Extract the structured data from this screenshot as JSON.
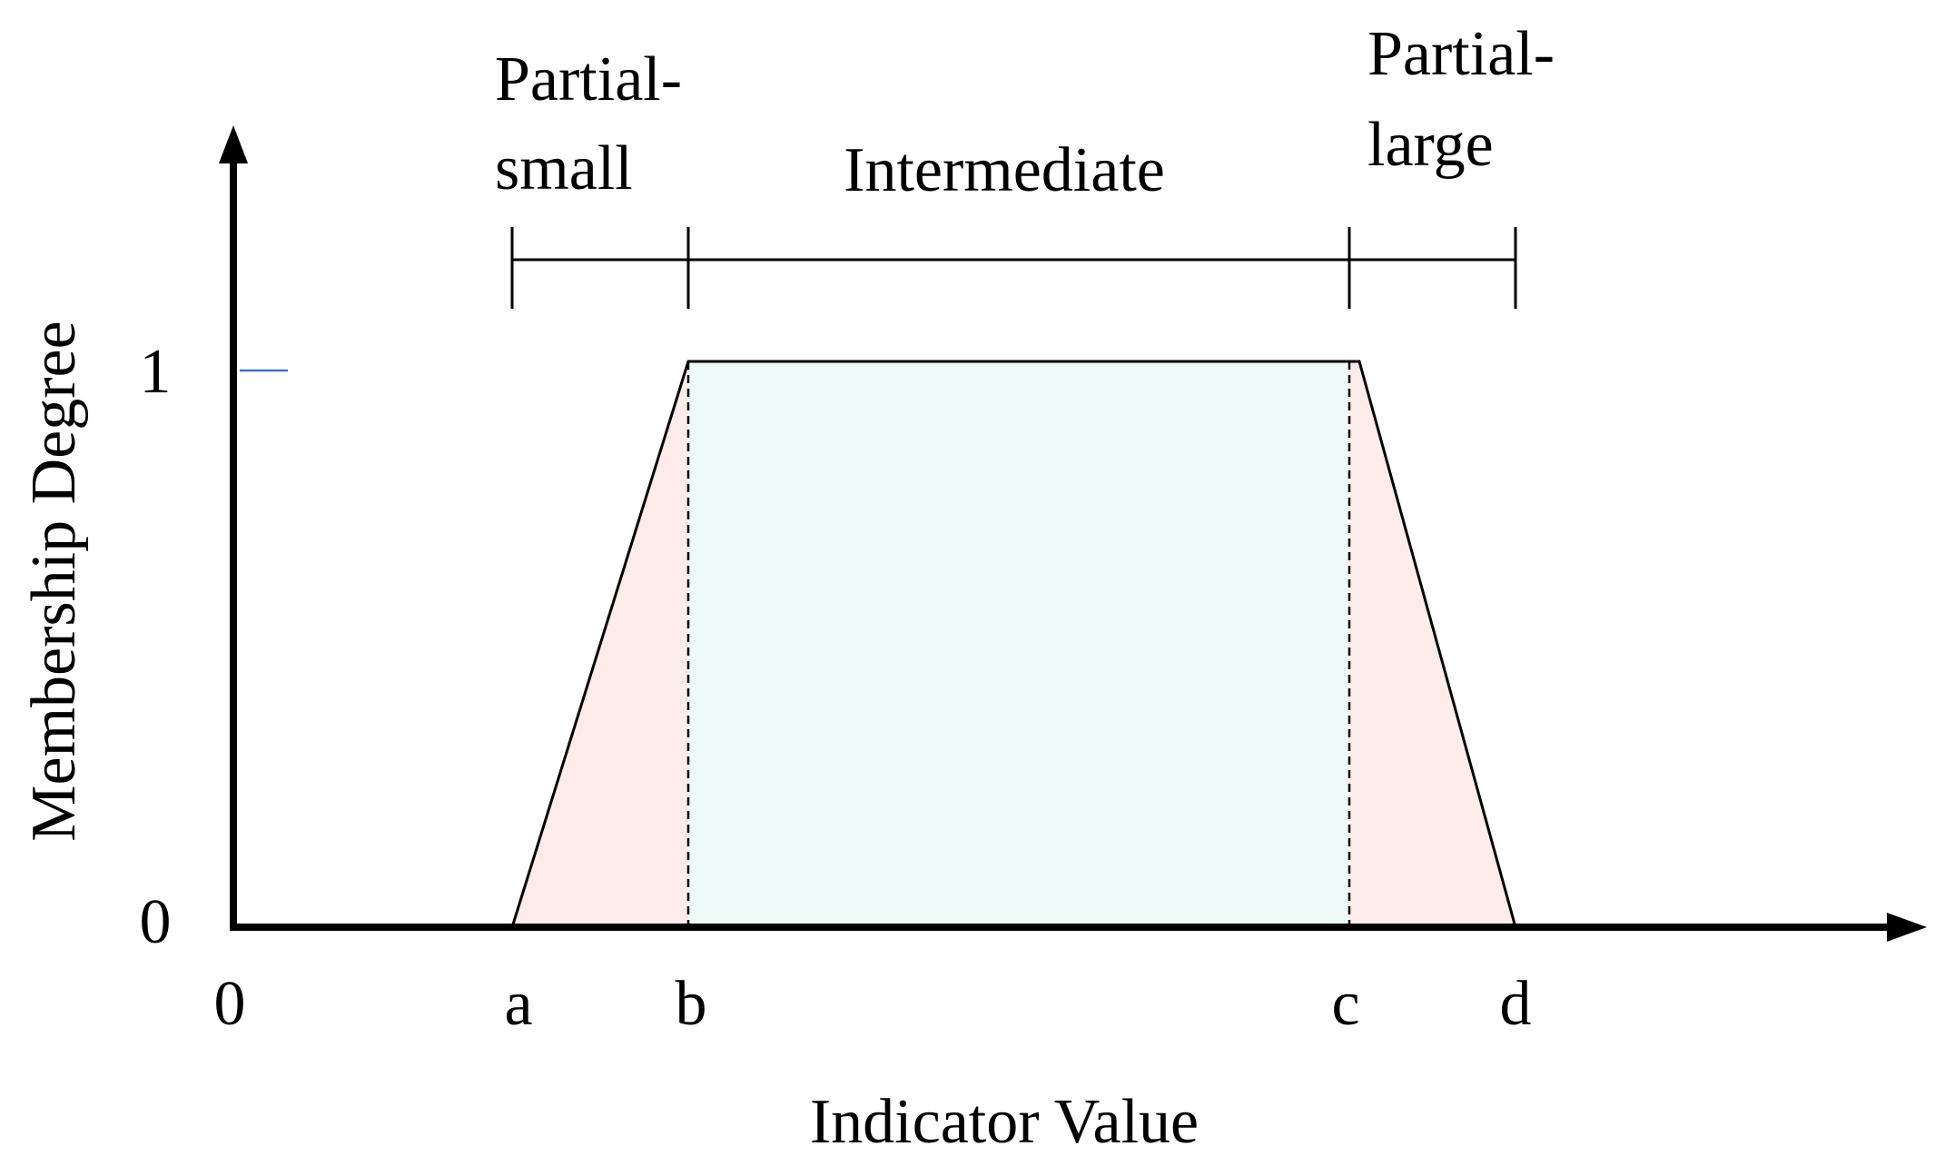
{
  "regions": [
    {
      "label": [
        "Partial-",
        "small"
      ]
    },
    {
      "label": [
        "Intermediate"
      ]
    },
    {
      "label": [
        "Partial-",
        "large"
      ]
    }
  ],
  "y_axis": {
    "title": "Membership Degree",
    "ticks": [
      "0",
      "1"
    ]
  },
  "x_axis": {
    "title": "Indicator Value",
    "ticks": [
      "0",
      "a",
      "b",
      "c",
      "d"
    ]
  }
}
